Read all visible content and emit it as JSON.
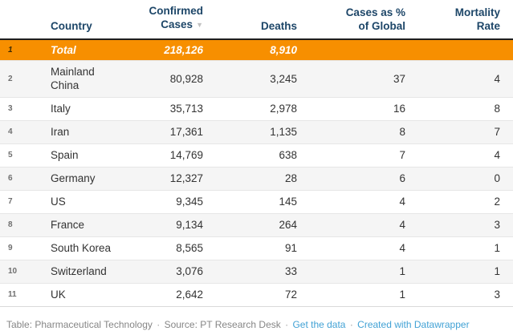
{
  "table": {
    "sort_icon": "▼",
    "columns": [
      {
        "label": "Country"
      },
      {
        "label": "Confirmed\nCases",
        "sorted": "descending"
      },
      {
        "label": "Deaths"
      },
      {
        "label": "Cases as %\nof Global"
      },
      {
        "label": "Mortality\nRate"
      }
    ],
    "rows": [
      {
        "num": "1",
        "country": "Total",
        "confirmed": "218,126",
        "deaths": "8,910",
        "global_pct": "",
        "mortality": "",
        "is_total": true
      },
      {
        "num": "2",
        "country": "Mainland China",
        "confirmed": "80,928",
        "deaths": "3,245",
        "global_pct": "37",
        "mortality": "4"
      },
      {
        "num": "3",
        "country": "Italy",
        "confirmed": "35,713",
        "deaths": "2,978",
        "global_pct": "16",
        "mortality": "8"
      },
      {
        "num": "4",
        "country": "Iran",
        "confirmed": "17,361",
        "deaths": "1,135",
        "global_pct": "8",
        "mortality": "7"
      },
      {
        "num": "5",
        "country": "Spain",
        "confirmed": "14,769",
        "deaths": "638",
        "global_pct": "7",
        "mortality": "4"
      },
      {
        "num": "6",
        "country": "Germany",
        "confirmed": "12,327",
        "deaths": "28",
        "global_pct": "6",
        "mortality": "0"
      },
      {
        "num": "7",
        "country": "US",
        "confirmed": "9,345",
        "deaths": "145",
        "global_pct": "4",
        "mortality": "2"
      },
      {
        "num": "8",
        "country": "France",
        "confirmed": "9,134",
        "deaths": "264",
        "global_pct": "4",
        "mortality": "3"
      },
      {
        "num": "9",
        "country": "South Korea",
        "confirmed": "8,565",
        "deaths": "91",
        "global_pct": "4",
        "mortality": "1"
      },
      {
        "num": "10",
        "country": "Switzerland",
        "confirmed": "3,076",
        "deaths": "33",
        "global_pct": "1",
        "mortality": "1"
      },
      {
        "num": "11",
        "country": "UK",
        "confirmed": "2,642",
        "deaths": "72",
        "global_pct": "1",
        "mortality": "3"
      }
    ]
  },
  "footer": {
    "table_label": "Table: Pharmaceutical Technology",
    "separator": "·",
    "source_label": "Source: PT Research Desk",
    "get_data_label": "Get the data",
    "created_label": "Created with Datawrapper"
  },
  "colors": {
    "highlight_row": "#f78f00",
    "header_text": "#1d4668",
    "link_blue": "#42a2d5",
    "stripe": "#f5f5f5"
  },
  "chart_data": {
    "type": "table",
    "columns": [
      "Country",
      "Confirmed Cases",
      "Deaths",
      "Cases as % of Global",
      "Mortality Rate"
    ],
    "rows": [
      [
        "Total",
        218126,
        8910,
        null,
        null
      ],
      [
        "Mainland China",
        80928,
        3245,
        37,
        4
      ],
      [
        "Italy",
        35713,
        2978,
        16,
        8
      ],
      [
        "Iran",
        17361,
        1135,
        8,
        7
      ],
      [
        "Spain",
        14769,
        638,
        7,
        4
      ],
      [
        "Germany",
        12327,
        28,
        6,
        0
      ],
      [
        "US",
        9345,
        145,
        4,
        2
      ],
      [
        "France",
        9134,
        264,
        4,
        3
      ],
      [
        "South Korea",
        8565,
        91,
        4,
        1
      ],
      [
        "Switzerland",
        3076,
        33,
        1,
        1
      ],
      [
        "UK",
        2642,
        72,
        1,
        3
      ]
    ],
    "sorted_by": "Confirmed Cases",
    "sort_direction": "descending",
    "highlighted_row": "Total"
  }
}
